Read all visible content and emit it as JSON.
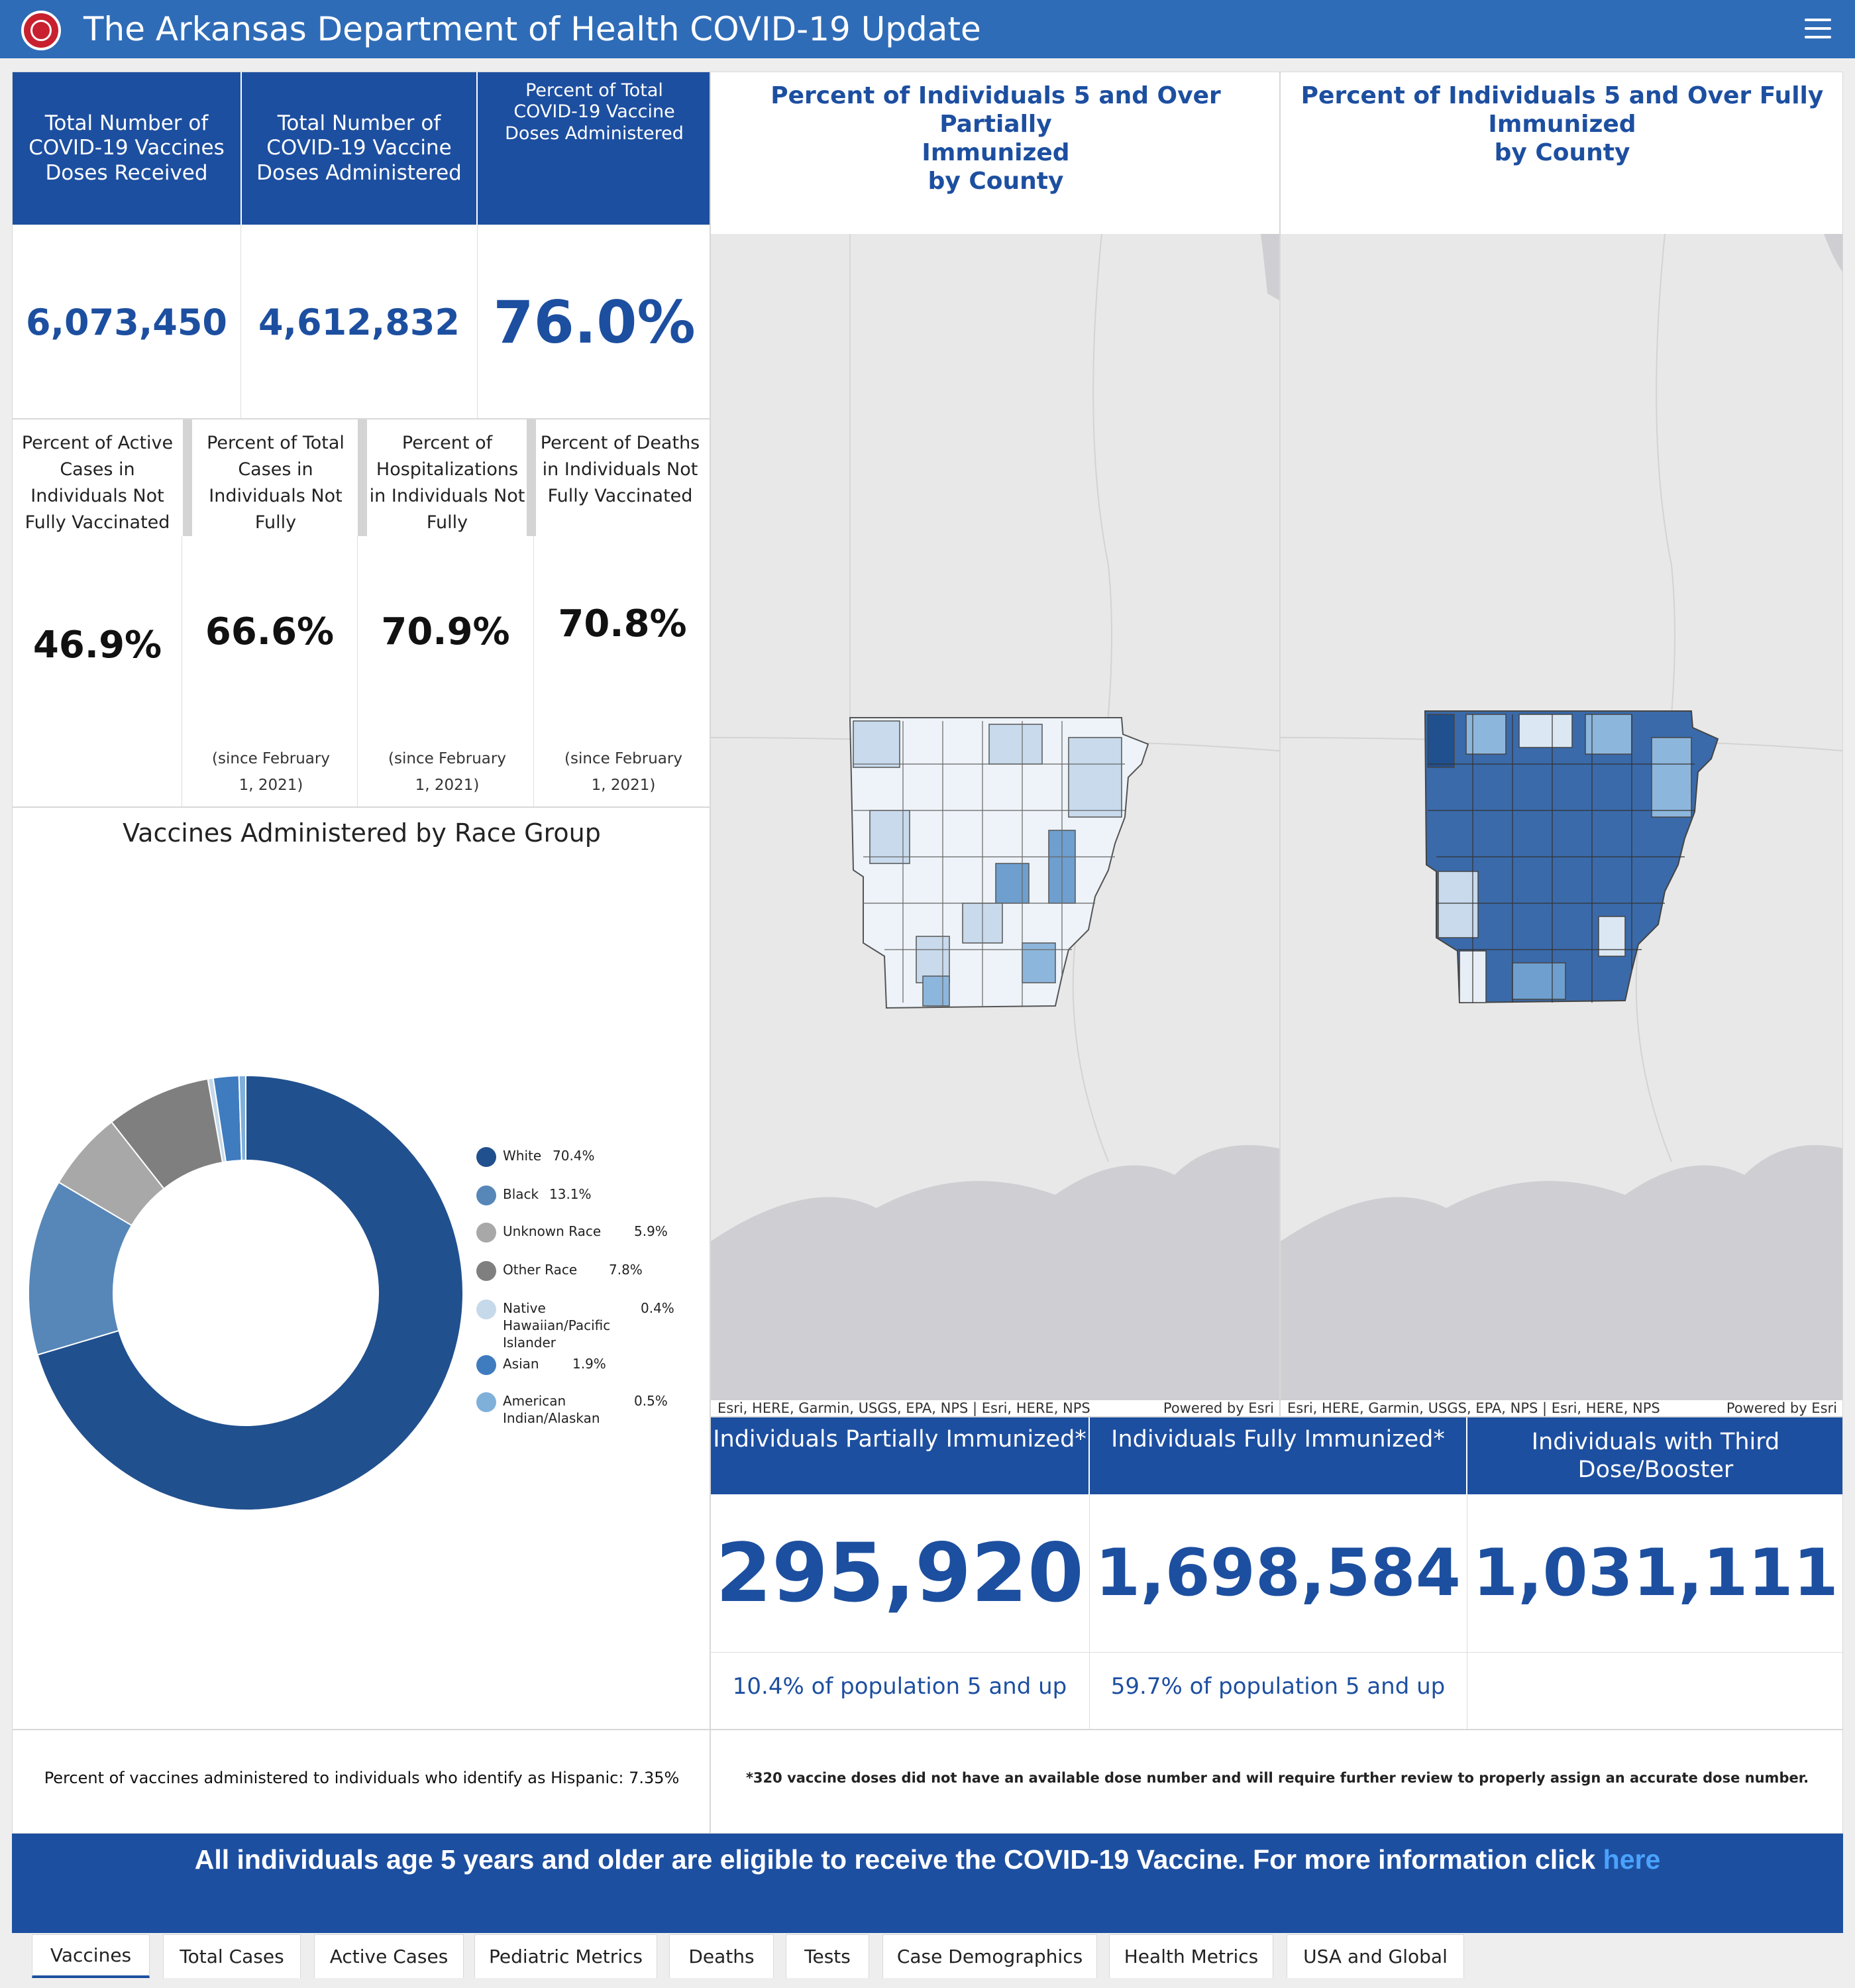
{
  "header": {
    "title": "The Arkansas Department of Health COVID-19 Update"
  },
  "top_cards": [
    {
      "label": "Total Number of COVID-19 Vaccines Doses Received",
      "value": "6,073,450"
    },
    {
      "label": "Total Number of COVID-19 Vaccine Doses Administered",
      "value": "4,612,832"
    },
    {
      "label": "Percent of Total COVID-19 Vaccine Doses Administered",
      "value": "76.0%"
    }
  ],
  "pct_cards": [
    {
      "label": "Percent of Active Cases in Individuals Not Fully Vaccinated",
      "value": "46.9%",
      "note": ""
    },
    {
      "label": "Percent of Total Cases in Individuals Not Fully",
      "value": "66.6%",
      "note": "(since February 1, 2021)"
    },
    {
      "label": "Percent of Hospitalizations in Individuals Not Fully",
      "value": "70.9%",
      "note": "(since February 1, 2021)"
    },
    {
      "label": "Percent of Deaths in Individuals Not Fully Vaccinated",
      "value": "70.8%",
      "note": "(since February 1, 2021)"
    }
  ],
  "maps": [
    {
      "title_l1": "Percent of Individuals 5 and Over Partially",
      "title_l2": "Immunized",
      "title_l3": "by County",
      "attribution": "Esri, HERE, Garmin, USGS, EPA, NPS | Esri, HERE, NPS",
      "powered": "Powered by Esri"
    },
    {
      "title_l1": "Percent of Individuals 5 and Over Fully",
      "title_l2": "Immunized",
      "title_l3": "by County",
      "attribution": "Esri, HERE, Garmin, USGS, EPA, NPS | Esri, HERE, NPS",
      "powered": "Powered by Esri"
    }
  ],
  "immunized": [
    {
      "label": "Individuals Partially Immunized*",
      "value": "295,920",
      "sub": "10.4% of population 5 and up"
    },
    {
      "label": "Individuals Fully Immunized*",
      "value": "1,698,584",
      "sub": "59.7% of population 5 and up"
    },
    {
      "label": "Individuals with Third Dose/Booster",
      "value": "1,031,111",
      "sub": ""
    }
  ],
  "chart_data": {
    "type": "pie",
    "title": "Vaccines Administered by Race Group",
    "categories": [
      "White",
      "Black",
      "Unknown Race",
      "Other Race",
      "Native Hawaiian/Pacific Islander",
      "Asian",
      "American Indian/Alaskan"
    ],
    "values": [
      70.4,
      13.1,
      5.9,
      7.8,
      0.4,
      1.9,
      0.5
    ],
    "value_labels": [
      "70.4%",
      "13.1%",
      "5.9%",
      "7.8%",
      "0.4%",
      "1.9%",
      "0.5%"
    ],
    "colors": [
      "#21508e",
      "#5687b8",
      "#a8a8a8",
      "#7f7f7f",
      "#c6d9ea",
      "#3f7bbf",
      "#7fb0da"
    ],
    "legend": "right",
    "donut": true
  },
  "legend_rows": [
    {
      "l1": "White",
      "l2": "",
      "l3": ""
    },
    {
      "l1": "Black",
      "l2": "",
      "l3": ""
    },
    {
      "l1": "Unknown Race",
      "l2": "",
      "l3": ""
    },
    {
      "l1": "Other Race",
      "l2": "",
      "l3": ""
    },
    {
      "l1": "Native",
      "l2": "Hawaiian/Pacific",
      "l3": "Islander"
    },
    {
      "l1": "Asian",
      "l2": "",
      "l3": ""
    },
    {
      "l1": "American",
      "l2": "Indian/Alaskan",
      "l3": ""
    }
  ],
  "footnotes": {
    "hispanic": "Percent of vaccines administered to individuals who identify as Hispanic: 7.35%",
    "doses": "*320 vaccine doses did not have an available dose number and will require further review to properly assign an accurate dose number."
  },
  "banner": {
    "text": "All individuals age 5 years and older are eligible to receive the COVID-19 Vaccine. For more information click",
    "link": "here"
  },
  "tabs": [
    "Vaccines",
    "Total Cases",
    "Active Cases",
    "Pediatric Metrics",
    "Deaths",
    "Tests",
    "Case Demographics",
    "Health Metrics",
    "USA and Global"
  ],
  "active_tab": "Vaccines"
}
